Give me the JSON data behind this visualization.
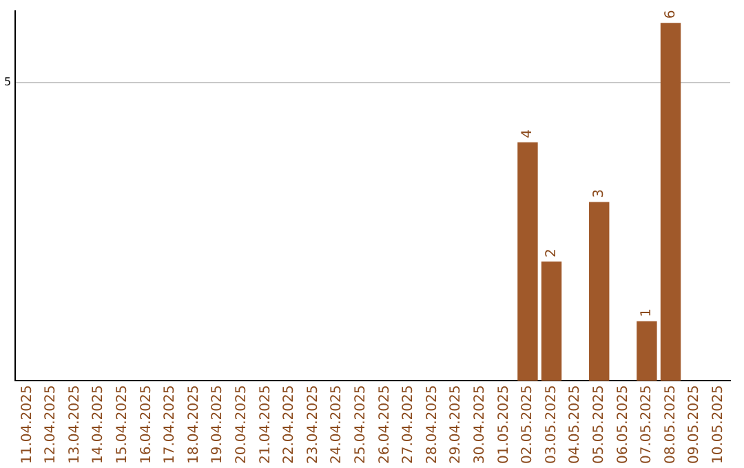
{
  "chart_data": {
    "type": "bar",
    "categories": [
      "11.04.2025",
      "12.04.2025",
      "13.04.2025",
      "14.04.2025",
      "15.04.2025",
      "16.04.2025",
      "17.04.2025",
      "18.04.2025",
      "19.04.2025",
      "20.04.2025",
      "21.04.2025",
      "22.04.2025",
      "23.04.2025",
      "24.04.2025",
      "25.04.2025",
      "26.04.2025",
      "27.04.2025",
      "28.04.2025",
      "29.04.2025",
      "30.04.2025",
      "01.05.2025",
      "02.05.2025",
      "03.05.2025",
      "04.05.2025",
      "05.05.2025",
      "06.05.2025",
      "07.05.2025",
      "08.05.2025",
      "09.05.2025",
      "10.05.2025"
    ],
    "values": [
      null,
      null,
      null,
      null,
      null,
      null,
      null,
      null,
      null,
      null,
      null,
      null,
      null,
      null,
      null,
      null,
      null,
      null,
      null,
      null,
      null,
      4,
      2,
      null,
      3,
      null,
      1,
      6,
      null,
      null
    ],
    "color": "#a0592a",
    "ylim": [
      0,
      6.2
    ],
    "yticks": [
      5
    ],
    "grid": "y",
    "data_labels": true,
    "legend": false
  }
}
